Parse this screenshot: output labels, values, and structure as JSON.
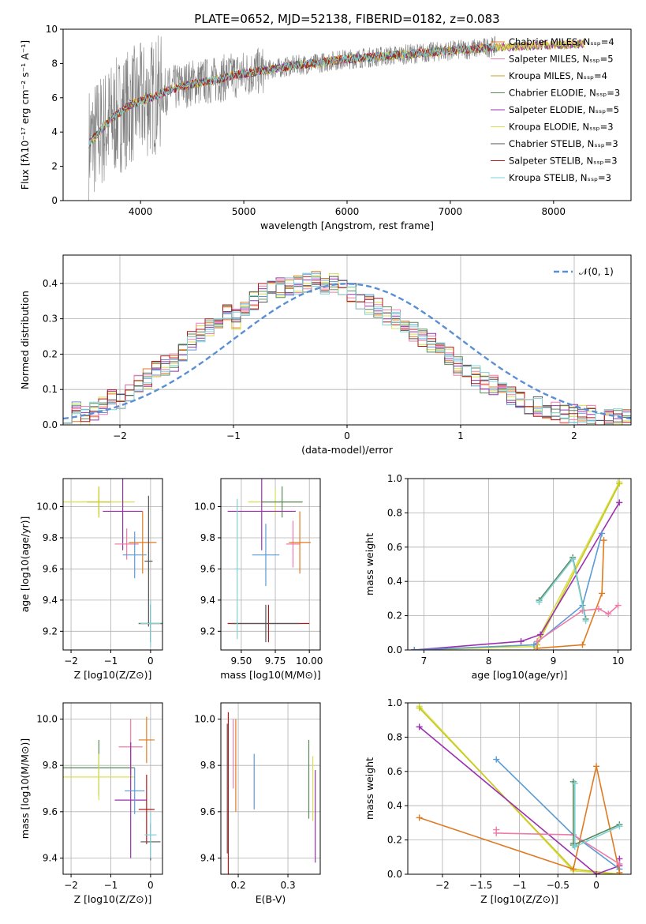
{
  "figure_title": "PLATE=0652, MJD=52138, FIBERID=0182, z=0.083",
  "model_colors": [
    "#e8a838",
    "#5b9bd5",
    "#c8c820",
    "#5a8a5a",
    "#9b30b0",
    "#d8e050",
    "#555555",
    "#b01818",
    "#80d0d8"
  ],
  "chart_data": [
    {
      "id": "spectrum",
      "type": "line",
      "title": "PLATE=0652, MJD=52138, FIBERID=0182, z=0.083",
      "xlabel": "wavelength [Angstrom, rest frame]",
      "ylabel": "Flux [fλ10⁻¹⁷ erg cm⁻² s⁻¹ A⁻¹]",
      "xlim": [
        3250,
        8750
      ],
      "ylim": [
        0,
        10
      ],
      "xticks": [
        4000,
        5000,
        6000,
        7000,
        8000
      ],
      "yticks": [
        0,
        2,
        4,
        6,
        8,
        10
      ],
      "grid": false,
      "legend_position": "upper right",
      "data_color": "#808080",
      "data": {
        "x": [
          3500,
          3700,
          3900,
          4100,
          4300,
          4500,
          4700,
          4900,
          5100,
          5300,
          5500,
          5700,
          5900,
          6100,
          6300,
          6500,
          6700,
          6900,
          7100,
          7300,
          7450
        ],
        "y": [
          3.3,
          4.6,
          5.5,
          6.0,
          6.5,
          6.9,
          7.0,
          7.3,
          7.5,
          7.7,
          7.9,
          8.0,
          8.2,
          8.3,
          8.4,
          8.5,
          8.6,
          8.7,
          8.8,
          8.9,
          9.0
        ]
      },
      "model": {
        "x": [
          3500,
          3700,
          3900,
          4100,
          4300,
          4500,
          4700,
          4900,
          5100,
          5300,
          5500,
          5700,
          5900,
          6100,
          6300,
          6500,
          6700,
          6900,
          7100,
          7300,
          7500,
          7700,
          7900,
          8100,
          8300
        ],
        "y": [
          3.3,
          4.7,
          5.6,
          6.0,
          6.5,
          6.8,
          7.0,
          7.3,
          7.5,
          7.7,
          7.9,
          8.0,
          8.2,
          8.3,
          8.4,
          8.5,
          8.6,
          8.7,
          8.8,
          8.9,
          8.95,
          9.0,
          9.05,
          9.1,
          9.15
        ]
      },
      "legend": [
        {
          "label": "Chabrier MILES, N_SSP=4",
          "color": "#e07a20"
        },
        {
          "label": "Salpeter MILES, N_SSP=5",
          "color": "#f07aa8"
        },
        {
          "label": "Kroupa MILES, N_SSP=4",
          "color": "#c8a020"
        },
        {
          "label": "Chabrier ELODIE, N_SSP=3",
          "color": "#5a8a5a"
        },
        {
          "label": "Salpeter ELODIE, N_SSP=5",
          "color": "#9b30b0"
        },
        {
          "label": "Kroupa ELODIE, N_SSP=3",
          "color": "#d8e050"
        },
        {
          "label": "Chabrier STELIB, N_SSP=3",
          "color": "#555555"
        },
        {
          "label": "Salpeter STELIB, N_SSP=3",
          "color": "#b01818"
        },
        {
          "label": "Kroupa STELIB, N_SSP=3",
          "color": "#80d0d8"
        }
      ]
    },
    {
      "id": "residuals",
      "type": "histogram",
      "xlabel": "(data-model)/error",
      "ylabel": "Normed distribution",
      "xlim": [
        -2.5,
        2.5
      ],
      "ylim": [
        0,
        0.48
      ],
      "xticks": [
        -2,
        -1,
        0,
        1,
        2
      ],
      "yticks": [
        0.0,
        0.1,
        0.2,
        0.3,
        0.4
      ],
      "grid": true,
      "legend_position": "upper right",
      "legend": [
        {
          "label": "N(0,1)",
          "color": "#5b8fd5",
          "style": "dashed"
        }
      ],
      "bin_edges_start": -2.5,
      "bin_width": 0.1,
      "base_values": [
        0.035,
        0.035,
        0.03,
        0.04,
        0.05,
        0.07,
        0.07,
        0.095,
        0.12,
        0.13,
        0.15,
        0.17,
        0.18,
        0.21,
        0.24,
        0.26,
        0.27,
        0.29,
        0.31,
        0.3,
        0.32,
        0.35,
        0.37,
        0.38,
        0.39,
        0.395,
        0.4,
        0.405,
        0.41,
        0.4,
        0.4,
        0.38,
        0.37,
        0.35,
        0.34,
        0.33,
        0.31,
        0.3,
        0.28,
        0.26,
        0.25,
        0.23,
        0.21,
        0.19,
        0.17,
        0.15,
        0.14,
        0.12,
        0.11,
        0.09,
        0.08,
        0.07,
        0.06,
        0.05,
        0.04,
        0.035,
        0.03,
        0.03,
        0.03,
        0.025,
        0.02,
        0.02,
        0.02,
        0.02
      ]
    },
    {
      "id": "z-age",
      "type": "errorbar",
      "xlabel": "Z [log10(Z/Z⊙)]",
      "ylabel": "age  [log10(age/yr)]",
      "xlim": [
        -2.2,
        0.3
      ],
      "ylim": [
        9.08,
        10.18
      ],
      "xticks": [
        -2,
        -1,
        0
      ],
      "yticks": [
        9.2,
        9.4,
        9.6,
        9.8,
        10.0
      ],
      "grid": true,
      "points": [
        {
          "x": -1.3,
          "y": 10.03,
          "xerr": 0.9,
          "yerr": 0.08,
          "color": "#d8e050"
        },
        {
          "x": -1.3,
          "y": 10.03,
          "xerr": 0.3,
          "yerr": 0.1,
          "color": "#c8c820"
        },
        {
          "x": -0.7,
          "y": 9.97,
          "xerr": 0.5,
          "yerr": 0.25,
          "color": "#9b30b0"
        },
        {
          "x": -0.6,
          "y": 9.76,
          "xerr": 0.3,
          "yerr": 0.1,
          "color": "#f07aa8"
        },
        {
          "x": -0.4,
          "y": 9.69,
          "xerr": 0.3,
          "yerr": 0.15,
          "color": "#5b9bd5"
        },
        {
          "x": -0.2,
          "y": 9.77,
          "xerr": 0.35,
          "yerr": 0.2,
          "color": "#e07a20"
        },
        {
          "x": 0.0,
          "y": 9.25,
          "xerr": 0.3,
          "yerr": 0.12,
          "color": "#b01818"
        },
        {
          "x": 0.0,
          "y": 9.25,
          "xerr": 0.3,
          "yerr": 0.12,
          "color": "#5a8a5a"
        },
        {
          "x": -0.05,
          "y": 9.65,
          "xerr": 0.1,
          "yerr": 0.42,
          "color": "#555555"
        },
        {
          "x": 0.0,
          "y": 9.25,
          "xerr": 0.25,
          "yerr": 0.15,
          "color": "#80d0d8"
        }
      ]
    },
    {
      "id": "mass-age",
      "type": "errorbar",
      "xlabel": "mass [log10(M/M⊙)]",
      "ylabel": "",
      "xlim": [
        9.35,
        10.08
      ],
      "ylim": [
        9.08,
        10.18
      ],
      "xticks": [
        9.5,
        9.75,
        10.0
      ],
      "tick_labels_x": [
        "9.50",
        "9.75",
        "10.00"
      ],
      "yticks": [
        9.2,
        9.4,
        9.6,
        9.8,
        10.0
      ],
      "grid": true,
      "points": [
        {
          "x": 9.75,
          "y": 10.03,
          "xerr": 0.2,
          "yerr": 0.08,
          "color": "#d8e050"
        },
        {
          "x": 9.8,
          "y": 10.03,
          "xerr": 0.15,
          "yerr": 0.1,
          "color": "#5a8a5a"
        },
        {
          "x": 9.65,
          "y": 9.97,
          "xerr": 0.25,
          "yerr": 0.25,
          "color": "#9b30b0"
        },
        {
          "x": 9.88,
          "y": 9.76,
          "xerr": 0.05,
          "yerr": 0.15,
          "color": "#f07aa8"
        },
        {
          "x": 9.68,
          "y": 9.69,
          "xerr": 0.1,
          "yerr": 0.2,
          "color": "#5b9bd5"
        },
        {
          "x": 9.93,
          "y": 9.77,
          "xerr": 0.08,
          "yerr": 0.2,
          "color": "#e07a20"
        },
        {
          "x": 9.7,
          "y": 9.25,
          "xerr": 0.3,
          "yerr": 0.12,
          "color": "#b01818"
        },
        {
          "x": 9.68,
          "y": 9.25,
          "xerr": 0.25,
          "yerr": 0.12,
          "color": "#555555"
        },
        {
          "x": 9.47,
          "y": 9.6,
          "xerr": 0.02,
          "yerr": 0.45,
          "color": "#80d0d8"
        }
      ]
    },
    {
      "id": "age-weight",
      "type": "line",
      "xlabel": "age  [log10(age/yr)]",
      "ylabel": "mass weight",
      "xlim": [
        6.75,
        10.2
      ],
      "ylim": [
        0,
        1
      ],
      "xticks": [
        7,
        8,
        9,
        10
      ],
      "yticks": [
        0.0,
        0.2,
        0.4,
        0.6,
        0.8,
        1.0
      ],
      "grid": true,
      "series": [
        {
          "color": "#d8e050",
          "x": [
            6.85,
            8.7,
            10.02
          ],
          "y": [
            0.0,
            0.02,
            0.98
          ]
        },
        {
          "color": "#c8c820",
          "x": [
            6.85,
            8.75,
            10.02
          ],
          "y": [
            0.0,
            0.03,
            0.97
          ]
        },
        {
          "color": "#9b30b0",
          "x": [
            6.85,
            8.5,
            8.8,
            10.02
          ],
          "y": [
            0.0,
            0.05,
            0.09,
            0.86
          ]
        },
        {
          "color": "#5b9bd5",
          "x": [
            6.85,
            8.7,
            9.45,
            9.75
          ],
          "y": [
            0.0,
            0.03,
            0.26,
            0.68
          ]
        },
        {
          "color": "#e07a20",
          "x": [
            8.75,
            9.45,
            9.75,
            9.78
          ],
          "y": [
            0.01,
            0.03,
            0.33,
            0.64
          ]
        },
        {
          "color": "#f07aa8",
          "x": [
            8.75,
            9.45,
            9.7,
            9.85,
            10.0
          ],
          "y": [
            0.05,
            0.23,
            0.24,
            0.21,
            0.26
          ]
        },
        {
          "color": "#5a8a5a",
          "x": [
            8.78,
            9.3,
            9.5
          ],
          "y": [
            0.29,
            0.54,
            0.18
          ]
        },
        {
          "color": "#80d0d8",
          "x": [
            8.78,
            9.3,
            9.5
          ],
          "y": [
            0.28,
            0.53,
            0.17
          ]
        }
      ]
    },
    {
      "id": "z-mass",
      "type": "errorbar",
      "xlabel": "Z [log10(Z/Z⊙)]",
      "ylabel": "mass [log10(M/M⊙)]",
      "xlim": [
        -2.2,
        0.3
      ],
      "ylim": [
        9.33,
        10.07
      ],
      "xticks": [
        -2,
        -1,
        0
      ],
      "yticks": [
        9.4,
        9.6,
        9.8,
        10.0
      ],
      "grid": true,
      "points": [
        {
          "x": -1.3,
          "y": 9.79,
          "xerr": 0.9,
          "yerr": 0.12,
          "color": "#5a8a5a"
        },
        {
          "x": -1.3,
          "y": 9.75,
          "xerr": 0.9,
          "yerr": 0.1,
          "color": "#d8e050"
        },
        {
          "x": -0.5,
          "y": 9.88,
          "xerr": 0.3,
          "yerr": 0.12,
          "color": "#f07aa8"
        },
        {
          "x": -0.5,
          "y": 9.65,
          "xerr": 0.4,
          "yerr": 0.25,
          "color": "#9b30b0"
        },
        {
          "x": -0.4,
          "y": 9.69,
          "xerr": 0.25,
          "yerr": 0.1,
          "color": "#5b9bd5"
        },
        {
          "x": -0.1,
          "y": 9.91,
          "xerr": 0.2,
          "yerr": 0.1,
          "color": "#e07a20"
        },
        {
          "x": -0.1,
          "y": 9.61,
          "xerr": 0.2,
          "yerr": 0.15,
          "color": "#b01818"
        },
        {
          "x": 0.0,
          "y": 9.47,
          "xerr": 0.25,
          "yerr": 0.08,
          "color": "#555555"
        },
        {
          "x": 0.0,
          "y": 9.5,
          "xerr": 0.15,
          "yerr": 0.1,
          "color": "#80d0d8"
        }
      ]
    },
    {
      "id": "ebv-mass",
      "type": "errorbar",
      "xlabel": "E(B-V)",
      "ylabel": "",
      "xlim": [
        0.165,
        0.365
      ],
      "ylim": [
        9.33,
        10.07
      ],
      "xticks": [
        0.2,
        0.3
      ],
      "yticks": [
        9.4,
        9.6,
        9.8,
        10.0
      ],
      "grid": true,
      "points": [
        {
          "x": 0.178,
          "y": 9.7,
          "xerr": 0.0,
          "yerr": 0.28,
          "color": "#555555"
        },
        {
          "x": 0.18,
          "y": 9.65,
          "xerr": 0.0,
          "yerr": 0.38,
          "color": "#b01818"
        },
        {
          "x": 0.19,
          "y": 9.85,
          "xerr": 0.0,
          "yerr": 0.15,
          "color": "#f07aa8"
        },
        {
          "x": 0.195,
          "y": 9.8,
          "xerr": 0.0,
          "yerr": 0.2,
          "color": "#e07a20"
        },
        {
          "x": 0.232,
          "y": 9.73,
          "xerr": 0.0,
          "yerr": 0.12,
          "color": "#5b9bd5"
        },
        {
          "x": 0.342,
          "y": 9.74,
          "xerr": 0.0,
          "yerr": 0.17,
          "color": "#5a8a5a"
        },
        {
          "x": 0.35,
          "y": 9.7,
          "xerr": 0.0,
          "yerr": 0.14,
          "color": "#d8e050"
        },
        {
          "x": 0.355,
          "y": 9.58,
          "xerr": 0.0,
          "yerr": 0.2,
          "color": "#9b30b0"
        }
      ]
    },
    {
      "id": "z-weight",
      "type": "line",
      "xlabel": "Z [log10(Z/Z⊙)]",
      "ylabel": "mass weight",
      "xlim": [
        -2.45,
        0.45
      ],
      "ylim": [
        0,
        1
      ],
      "xticks": [
        -2.0,
        -1.5,
        -1.0,
        -0.5,
        0.0
      ],
      "yticks": [
        0.0,
        0.2,
        0.4,
        0.6,
        0.8,
        1.0
      ],
      "grid": true,
      "series": [
        {
          "color": "#d8e050",
          "x": [
            -2.3,
            -0.3,
            0.3
          ],
          "y": [
            0.98,
            0.02,
            0.0
          ]
        },
        {
          "color": "#c8c820",
          "x": [
            -2.3,
            -0.3,
            0.3
          ],
          "y": [
            0.97,
            0.03,
            0.0
          ]
        },
        {
          "color": "#9b30b0",
          "x": [
            -2.3,
            0.0,
            0.3,
            0.3
          ],
          "y": [
            0.86,
            0.0,
            0.05,
            0.09
          ]
        },
        {
          "color": "#5b9bd5",
          "x": [
            -1.3,
            -0.3,
            0.3
          ],
          "y": [
            0.67,
            0.23,
            0.03
          ]
        },
        {
          "color": "#e07a20",
          "x": [
            -2.3,
            -0.3,
            0.0,
            0.3
          ],
          "y": [
            0.33,
            0.03,
            0.63,
            0.01
          ]
        },
        {
          "color": "#f07aa8",
          "x": [
            -1.3,
            -1.3,
            -0.3,
            0.3
          ],
          "y": [
            0.26,
            0.24,
            0.23,
            0.06
          ]
        },
        {
          "color": "#5a8a5a",
          "x": [
            -0.3,
            -0.3,
            -0.3,
            0.3
          ],
          "y": [
            0.54,
            0.18,
            0.17,
            0.29
          ]
        },
        {
          "color": "#80d0d8",
          "x": [
            -0.28,
            -0.28,
            -0.28,
            0.3
          ],
          "y": [
            0.53,
            0.17,
            0.16,
            0.28
          ]
        }
      ]
    }
  ]
}
